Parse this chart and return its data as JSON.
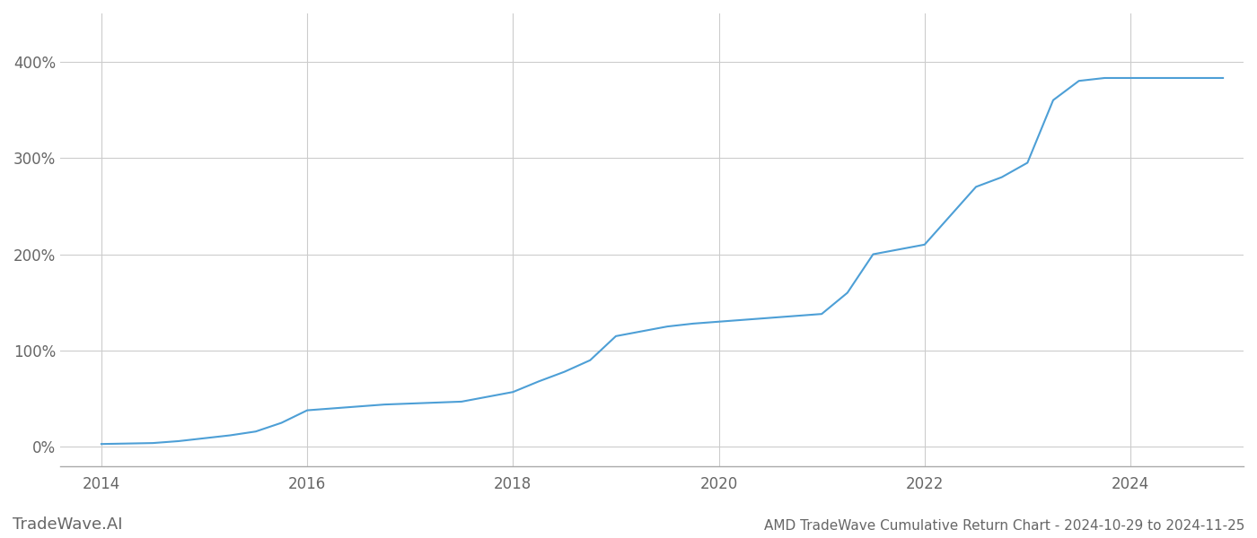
{
  "title": "AMD TradeWave Cumulative Return Chart - 2024-10-29 to 2024-11-25",
  "watermark": "TradeWave.AI",
  "line_color": "#4d9fd6",
  "background_color": "#ffffff",
  "grid_color": "#cccccc",
  "text_color": "#666666",
  "x_data": [
    2014.0,
    2014.25,
    2014.5,
    2014.75,
    2015.0,
    2015.25,
    2015.5,
    2015.75,
    2016.0,
    2016.25,
    2016.5,
    2016.75,
    2017.0,
    2017.25,
    2017.5,
    2017.75,
    2018.0,
    2018.25,
    2018.5,
    2018.75,
    2019.0,
    2019.25,
    2019.5,
    2019.75,
    2020.0,
    2020.25,
    2020.5,
    2020.75,
    2021.0,
    2021.25,
    2021.5,
    2021.75,
    2022.0,
    2022.25,
    2022.5,
    2022.75,
    2023.0,
    2023.25,
    2023.5,
    2023.75,
    2024.0,
    2024.5,
    2024.9
  ],
  "y_data": [
    3,
    3.5,
    4,
    6,
    9,
    12,
    16,
    25,
    38,
    40,
    42,
    44,
    45,
    46,
    47,
    52,
    57,
    68,
    78,
    90,
    115,
    120,
    125,
    128,
    130,
    132,
    134,
    136,
    138,
    160,
    200,
    205,
    210,
    240,
    270,
    280,
    295,
    360,
    380,
    383,
    383,
    383,
    383
  ],
  "yticks": [
    0,
    100,
    200,
    300,
    400
  ],
  "ytick_labels": [
    "0%",
    "100%",
    "200%",
    "300%",
    "400%"
  ],
  "xtick_years": [
    2014,
    2016,
    2018,
    2020,
    2022,
    2024
  ],
  "ylim": [
    -20,
    450
  ],
  "xlim": [
    2013.6,
    2025.1
  ],
  "line_width": 1.5,
  "title_fontsize": 11,
  "tick_fontsize": 12,
  "watermark_fontsize": 13
}
